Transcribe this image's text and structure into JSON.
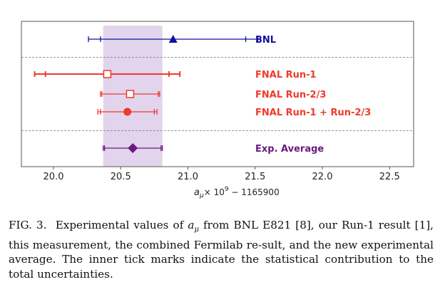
{
  "chart_data": {
    "type": "scatter",
    "subtype": "horizontal error-bar comparison",
    "xlabel": "a_μ × 10^9 − 1165900",
    "xlabel_parts": {
      "symbol": "a",
      "sub": "μ",
      "times": "× 10",
      "exp": "9",
      "rest": " − 1165900"
    },
    "xlim": [
      19.75,
      22.75
    ],
    "xticks": [
      "20.0",
      "20.5",
      "21.0",
      "21.5",
      "22.0",
      "22.5"
    ],
    "xtick_values": [
      20.0,
      20.5,
      21.0,
      21.5,
      22.0,
      22.5
    ],
    "grid": false,
    "band": {
      "label": "Exp. Average",
      "min": 20.37,
      "max": 20.81,
      "color": "#dccde9"
    },
    "series": [
      {
        "name": "BNL",
        "value": 20.89,
        "total_err": 0.63,
        "stat_err": 0.54,
        "marker": "triangle",
        "color": "#1010a0",
        "group": 0
      },
      {
        "name": "FNAL Run-1",
        "value": 20.4,
        "total_err": 0.54,
        "stat_err": 0.46,
        "marker": "open-square",
        "color": "#f03a2a",
        "group": 1
      },
      {
        "name": "FNAL Run-2/3",
        "value": 20.57,
        "total_err": 0.22,
        "stat_err": 0.21,
        "marker": "open-square",
        "color": "#f03a2a",
        "group": 1
      },
      {
        "name": "FNAL Run-1 + Run-2/3",
        "value": 20.55,
        "total_err": 0.22,
        "stat_err": 0.2,
        "marker": "circle",
        "color": "#f03a2a",
        "group": 1
      },
      {
        "name": "Exp. Average",
        "value": 20.59,
        "total_err": 0.22,
        "stat_err": 0.21,
        "marker": "diamond",
        "color": "#6a1a80",
        "group": 2
      }
    ]
  },
  "caption": {
    "label": "FIG. 3.",
    "text": "Experimental values of a_μ from BNL E821 [8], our Run-1 result [1], this measurement, the combined Fermilab result, and the new experimental average. The inner tick marks indicate the statistical contribution to the total uncertainties.",
    "part1": "Experimental values of ",
    "symbol": "a",
    "sub": "μ",
    "part2": " from BNL E821 [8], our Run-1 result [1], this measurement, the combined Fermilab re-sult, and the new experimental average. The inner tick marks indicate the statistical contribution to the total uncertainties."
  }
}
